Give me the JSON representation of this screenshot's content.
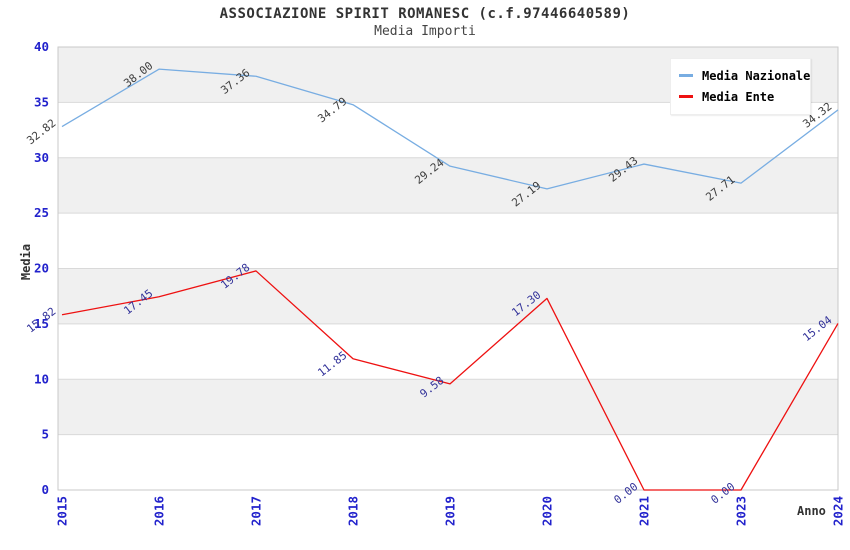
{
  "header": {
    "title": "ASSOCIAZIONE SPIRIT ROMANESC (c.f.97446640589)",
    "subtitle": "Media Importi"
  },
  "chart_data": {
    "type": "line",
    "title": "ASSOCIAZIONE SPIRIT ROMANESC (c.f.97446640589)",
    "subtitle": "Media Importi",
    "xlabel": "Anno",
    "ylabel": "Media",
    "ylim": [
      0,
      40
    ],
    "y_ticks": [
      0,
      5,
      10,
      15,
      20,
      25,
      30,
      35,
      40
    ],
    "grid": "horizontal-bands-alternating",
    "legend_position": "top-right-inside",
    "categories": [
      "2015",
      "2016",
      "2017",
      "2018",
      "2019",
      "2020",
      "2021",
      "2023",
      "2024"
    ],
    "series": [
      {
        "name": "Media Nazionale",
        "color": "#78ade2",
        "label_color": "#3d3d3d",
        "values": [
          32.82,
          38.0,
          37.36,
          34.79,
          29.24,
          27.19,
          29.43,
          27.71,
          34.32
        ],
        "labels": [
          "32.82",
          "38.00",
          "37.36",
          "34.79",
          "29.24",
          "27.19",
          "29.43",
          "27.71",
          "34.32"
        ]
      },
      {
        "name": "Media Ente",
        "color": "#ee1111",
        "label_color": "#33339a",
        "values": [
          15.82,
          17.45,
          19.78,
          11.85,
          9.58,
          17.3,
          0.0,
          0.0,
          15.04
        ],
        "labels": [
          "15.82",
          "17.45",
          "19.78",
          "11.85",
          "9.58",
          "17.30",
          "0.00",
          "0.00",
          "15.04"
        ]
      }
    ]
  },
  "colors": {
    "plot_border": "#c9c9c9",
    "grid_line": "#d9d9d9",
    "band_fill": "#f0f0f0",
    "tick_label": "#2222cc",
    "background": "#ffffff"
  }
}
